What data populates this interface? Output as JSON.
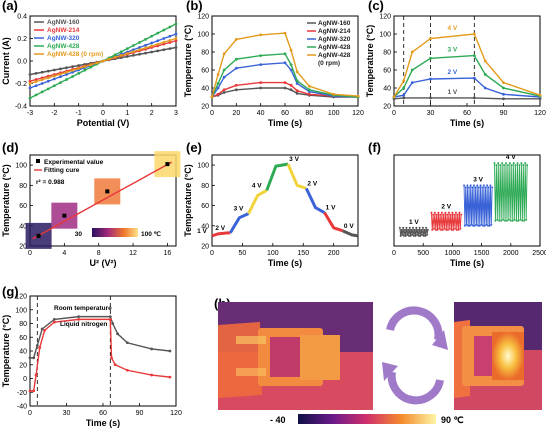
{
  "chart_data": [
    {
      "panel": "(a)",
      "type": "line",
      "xlabel": "Potential (V)",
      "ylabel": "Current (A)",
      "xlim": [
        -3,
        3
      ],
      "ylim": [
        -0.4,
        0.4
      ],
      "xticks": [
        "-3",
        "-2",
        "-1",
        "0",
        "1",
        "2",
        "3"
      ],
      "yticks": [
        "-0.4",
        "-0.2",
        "0.0",
        "0.2",
        "0.4"
      ],
      "series": [
        {
          "name": "AgNW-160",
          "color": "#555555",
          "x": [
            -3,
            3
          ],
          "y": [
            -0.12,
            0.12
          ]
        },
        {
          "name": "AgNW-214",
          "color": "#e8383b",
          "x": [
            -3,
            3
          ],
          "y": [
            -0.18,
            0.18
          ]
        },
        {
          "name": "AgNW-320",
          "color": "#3a63d8",
          "x": [
            -3,
            3
          ],
          "y": [
            -0.24,
            0.24
          ]
        },
        {
          "name": "AgNW-428",
          "color": "#2eaa55",
          "x": [
            -3,
            3
          ],
          "y": [
            -0.33,
            0.33
          ]
        },
        {
          "name": "AgNW-428 (0 rpm)",
          "color": "#e39b1d",
          "x": [
            -3,
            3
          ],
          "y": [
            -0.2,
            0.2
          ]
        }
      ]
    },
    {
      "panel": "(b)",
      "type": "line",
      "xlabel": "Time (s)",
      "ylabel": "Temperature (°C)",
      "xlim": [
        0,
        120
      ],
      "ylim": [
        20,
        120
      ],
      "xticks": [
        "0",
        "20",
        "40",
        "60",
        "80",
        "100",
        "120"
      ],
      "yticks": [
        "20",
        "40",
        "60",
        "80",
        "100",
        "120"
      ],
      "series": [
        {
          "name": "AgNW-160",
          "color": "#555555",
          "x": [
            0,
            5,
            10,
            20,
            40,
            60,
            65,
            70,
            80,
            100,
            120
          ],
          "y": [
            30,
            32,
            35,
            38,
            40,
            40,
            38,
            34,
            32,
            30,
            30
          ]
        },
        {
          "name": "AgNW-214",
          "color": "#e8383b",
          "x": [
            0,
            5,
            10,
            20,
            40,
            60,
            65,
            70,
            80,
            100,
            120
          ],
          "y": [
            30,
            33,
            38,
            43,
            46,
            46,
            43,
            37,
            33,
            31,
            30
          ]
        },
        {
          "name": "AgNW-320",
          "color": "#3a63d8",
          "x": [
            0,
            5,
            10,
            20,
            40,
            60,
            65,
            70,
            80,
            100,
            120
          ],
          "y": [
            30,
            40,
            52,
            62,
            66,
            68,
            60,
            45,
            36,
            31,
            30
          ]
        },
        {
          "name": "AgNW-428",
          "color": "#2eaa55",
          "x": [
            0,
            5,
            10,
            20,
            40,
            60,
            65,
            70,
            80,
            100,
            120
          ],
          "y": [
            30,
            45,
            60,
            72,
            76,
            78,
            66,
            48,
            38,
            32,
            30
          ]
        },
        {
          "name": "AgNW-428 (0 rpm)",
          "color": "#e39b1d",
          "x": [
            0,
            5,
            10,
            20,
            40,
            60,
            65,
            70,
            80,
            100,
            120
          ],
          "y": [
            30,
            55,
            78,
            94,
            99,
            101,
            82,
            58,
            42,
            33,
            31
          ]
        }
      ]
    },
    {
      "panel": "(c)",
      "type": "line",
      "xlabel": "Time (s)",
      "ylabel": "Temperature (°C)",
      "xlim": [
        0,
        120
      ],
      "ylim": [
        20,
        120
      ],
      "xticks": [
        "0",
        "30",
        "60",
        "90",
        "120"
      ],
      "yticks": [
        "20",
        "40",
        "60",
        "80",
        "100",
        "120"
      ],
      "annotations": [
        "4 V",
        "3 V",
        "2 V",
        "1 V"
      ],
      "series": [
        {
          "name": "1 V",
          "color": "#555555",
          "x": [
            0,
            8,
            30,
            66,
            90,
            120
          ],
          "y": [
            28,
            29,
            29,
            29,
            28,
            28
          ]
        },
        {
          "name": "2 V",
          "color": "#3a63d8",
          "x": [
            0,
            8,
            15,
            30,
            66,
            75,
            90,
            120
          ],
          "y": [
            30,
            32,
            46,
            50,
            51,
            40,
            33,
            30
          ]
        },
        {
          "name": "3 V",
          "color": "#2eaa55",
          "x": [
            0,
            8,
            15,
            30,
            66,
            75,
            90,
            120
          ],
          "y": [
            30,
            40,
            60,
            73,
            76,
            55,
            40,
            31
          ]
        },
        {
          "name": "4 V",
          "color": "#e39b1d",
          "x": [
            0,
            8,
            15,
            30,
            66,
            75,
            90,
            120
          ],
          "y": [
            30,
            48,
            80,
            95,
            100,
            70,
            46,
            32
          ]
        }
      ]
    },
    {
      "panel": "(d)",
      "type": "scatter",
      "xlabel": "U² (V²)",
      "ylabel": "Temperature (°C)",
      "xlim": [
        0,
        17
      ],
      "ylim": [
        20,
        110
      ],
      "xticks": [
        "0",
        "4",
        "8",
        "12",
        "16"
      ],
      "yticks": [
        "20",
        "40",
        "60",
        "80",
        "100"
      ],
      "legend": [
        "Experimental value",
        "Fitting cure"
      ],
      "r2": "r² = 0.988",
      "colorbar": [
        "30",
        "100 ℃"
      ],
      "points": {
        "x": [
          1,
          4,
          9,
          16
        ],
        "y": [
          30,
          50,
          74,
          101
        ]
      },
      "fit": {
        "x": [
          0.3,
          16.5
        ],
        "y": [
          27,
          103
        ]
      }
    },
    {
      "panel": "(e)",
      "type": "line",
      "xlabel": "Time (s)",
      "ylabel": "Temperature (°C)",
      "xlim": [
        0,
        240
      ],
      "ylim": [
        20,
        110
      ],
      "xticks": [
        "0",
        "50",
        "100",
        "150",
        "200"
      ],
      "yticks": [
        "20",
        "40",
        "60",
        "80",
        "100"
      ],
      "annotations": [
        "1 V",
        "2 V",
        "3 V",
        "4 V",
        "3 V",
        "2 V",
        "1 V",
        "0 V"
      ],
      "series": [
        {
          "name": "1 V",
          "color": "#e8383b",
          "x": [
            0,
            10,
            25,
            30
          ],
          "y": [
            30,
            32,
            33,
            33
          ]
        },
        {
          "name": "2 V",
          "color": "#3a63d8",
          "x": [
            30,
            45,
            60
          ],
          "y": [
            33,
            48,
            52
          ]
        },
        {
          "name": "3 V",
          "color": "#f2d33b",
          "x": [
            60,
            75,
            90
          ],
          "y": [
            52,
            70,
            75
          ]
        },
        {
          "name": "4 V",
          "color": "#2eaa55",
          "x": [
            90,
            105,
            125
          ],
          "y": [
            75,
            99,
            101
          ]
        },
        {
          "name": "3 V",
          "color": "#f2d33b",
          "x": [
            125,
            140,
            155
          ],
          "y": [
            101,
            80,
            77
          ]
        },
        {
          "name": "2 V",
          "color": "#3a63d8",
          "x": [
            155,
            170,
            185
          ],
          "y": [
            77,
            58,
            53
          ]
        },
        {
          "name": "1 V",
          "color": "#e8383b",
          "x": [
            185,
            200,
            215
          ],
          "y": [
            53,
            38,
            35
          ]
        },
        {
          "name": "0 V",
          "color": "#555555",
          "x": [
            215,
            230,
            240
          ],
          "y": [
            35,
            31,
            30
          ]
        }
      ]
    },
    {
      "panel": "(f)",
      "type": "scatter",
      "xlabel": "Time (s)",
      "ylabel": "",
      "xlim": [
        0,
        2500
      ],
      "ylim": [
        20,
        110
      ],
      "xticks": [
        "0",
        "500",
        "1000",
        "1500",
        "2000",
        "2500"
      ],
      "annotations": [
        "1 V",
        "2 V",
        "3 V",
        "4 V"
      ],
      "series": [
        {
          "name": "1 V",
          "color": "#555555",
          "xrange": [
            100,
            580
          ],
          "ylow": 30,
          "yhigh": 38
        },
        {
          "name": "2 V",
          "color": "#e8383b",
          "xrange": [
            640,
            1150
          ],
          "ylow": 36,
          "yhigh": 53
        },
        {
          "name": "3 V",
          "color": "#3a63d8",
          "xrange": [
            1200,
            1680
          ],
          "ylow": 40,
          "yhigh": 80
        },
        {
          "name": "4 V",
          "color": "#2eaa55",
          "xrange": [
            1720,
            2280
          ],
          "ylow": 45,
          "yhigh": 102
        }
      ]
    },
    {
      "panel": "(g)",
      "type": "line",
      "xlabel": "Time (s)",
      "ylabel": "Temperature (°C)",
      "xlim": [
        0,
        120
      ],
      "ylim": [
        -40,
        120
      ],
      "xticks": [
        "0",
        "30",
        "60",
        "90",
        "120"
      ],
      "yticks": [
        "-40",
        "-20",
        "0",
        "20",
        "40",
        "60",
        "80",
        "100",
        "120"
      ],
      "annotations": [
        "Room temperature",
        "Liquid nitrogen"
      ],
      "series": [
        {
          "name": "Room temperature",
          "color": "#555555",
          "x": [
            0,
            3,
            6,
            10,
            20,
            40,
            66,
            68,
            72,
            80,
            100,
            115
          ],
          "y": [
            30,
            30,
            48,
            72,
            86,
            90,
            90,
            80,
            65,
            52,
            43,
            40
          ]
        },
        {
          "name": "Liquid nitrogen",
          "color": "#e8383b",
          "x": [
            0,
            3,
            5,
            8,
            12,
            20,
            40,
            66,
            67,
            70,
            80,
            100,
            115
          ],
          "y": [
            -18,
            -18,
            5,
            45,
            70,
            82,
            86,
            86,
            30,
            20,
            12,
            5,
            2
          ]
        }
      ]
    }
  ],
  "panel_h": {
    "label": "(h)",
    "colorbar_min": "- 40",
    "colorbar_max": "90 ℃"
  },
  "colors": {
    "gray": "#555555",
    "red": "#e8383b",
    "blue": "#3a63d8",
    "green": "#2eaa55",
    "orange": "#e39b1d",
    "yellow": "#f2d33b"
  }
}
